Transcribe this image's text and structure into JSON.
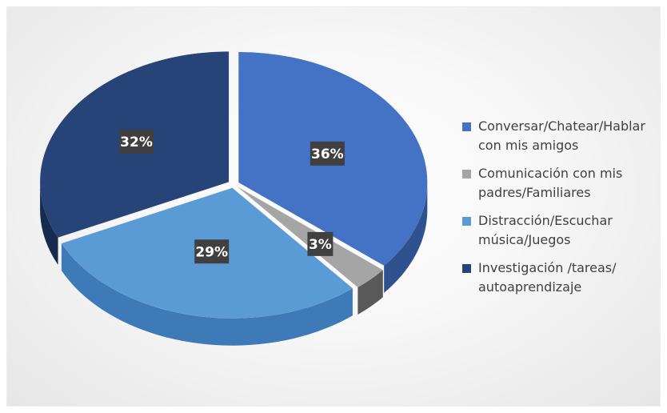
{
  "chart_data": {
    "type": "pie",
    "title": "",
    "categories": [
      "Conversar/Chatear/Hablar con mis amigos",
      "Comunicación con mis padres/Familiares",
      "Distracción/Escuchar música/Juegos",
      "Investigación /tareas/ autoaprendizaje"
    ],
    "values": [
      36,
      3,
      29,
      32
    ],
    "data_labels": [
      "36%",
      "3%",
      "29%",
      "32%"
    ],
    "colors": [
      "#4472C4",
      "#A5A5A5",
      "#5B9BD5",
      "#264478"
    ],
    "side_colors": [
      "#2F528F",
      "#595959",
      "#3F7AB8",
      "#162B4D"
    ],
    "style": "3d-exploded-pie",
    "legend_position": "right"
  },
  "legend": {
    "items": [
      {
        "label": "Conversar/Chatear/Hablar con mis amigos",
        "color": "#4472C4"
      },
      {
        "label": "Comunicación con mis padres/Familiares",
        "color": "#A5A5A5"
      },
      {
        "label": "Distracción/Escuchar música/Juegos",
        "color": "#5B9BD5"
      },
      {
        "label": "Investigación /tareas/ autoaprendizaje",
        "color": "#264478"
      }
    ]
  }
}
